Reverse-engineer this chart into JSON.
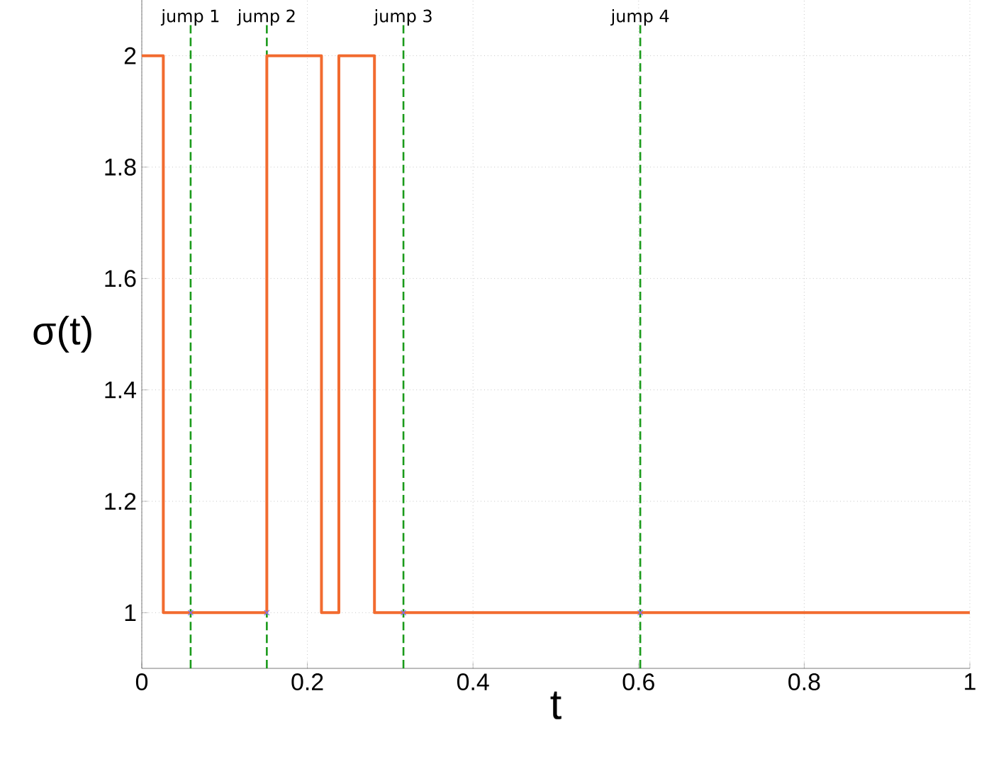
{
  "chart_data": {
    "type": "step",
    "xlabel": "t",
    "ylabel": "σ(t)",
    "xlim": [
      0,
      1
    ],
    "ylim": [
      0.9,
      2.1
    ],
    "xticks": [
      0,
      0.2,
      0.4,
      0.6,
      0.8,
      1
    ],
    "yticks": [
      1,
      1.2,
      1.4,
      1.6,
      1.8,
      2
    ],
    "grid": true,
    "series": [
      {
        "color": "#f26b2f",
        "x": [
          0,
          0.026,
          0.151,
          0.217,
          0.238,
          0.281,
          1
        ],
        "values": [
          2,
          1,
          2,
          1,
          2,
          1,
          1
        ]
      },
      {
        "type": "scatter",
        "color": "#7070ff",
        "marker": "cross",
        "x": [
          0.059,
          0.151,
          0.316,
          0.602
        ],
        "values": [
          1,
          1,
          1,
          1
        ]
      }
    ],
    "ref_lines": [
      {
        "axis": "x",
        "value": 0.059,
        "label": "jump 1",
        "color": "#1a9a1a",
        "line_style": "dashed"
      },
      {
        "axis": "x",
        "value": 0.151,
        "label": "jump 2",
        "color": "#1a9a1a",
        "line_style": "dashed"
      },
      {
        "axis": "x",
        "value": 0.316,
        "label": "jump 3",
        "color": "#1a9a1a",
        "line_style": "dashed"
      },
      {
        "axis": "x",
        "value": 0.602,
        "label": "jump 4",
        "color": "#1a9a1a",
        "line_style": "dashed"
      }
    ]
  }
}
